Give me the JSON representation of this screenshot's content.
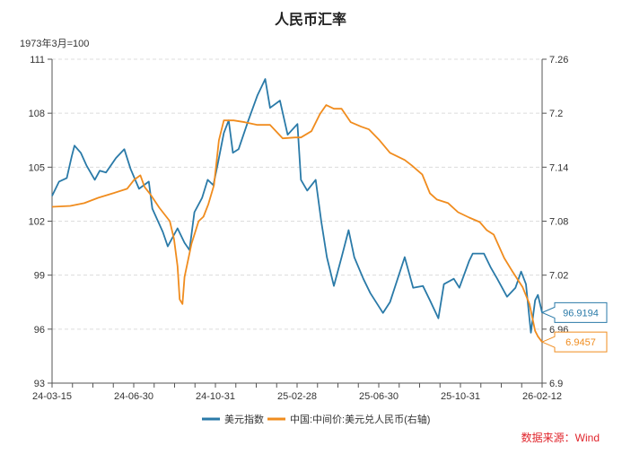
{
  "chart_data": {
    "type": "line",
    "title": "人民币汇率",
    "left_axis_note": "1973年3月=100",
    "source": "数据来源：Wind",
    "x_ticks": [
      "24-03-15",
      "24-06-30",
      "24-10-31",
      "25-02-28",
      "25-06-30",
      "25-10-31",
      "26-02-12"
    ],
    "x_range": [
      "2024-03-15",
      "2026-02-12"
    ],
    "y_left": {
      "ticks": [
        "111",
        "108",
        "105",
        "102",
        "99",
        "96",
        "93"
      ],
      "range": [
        93,
        111
      ]
    },
    "y_right": {
      "ticks": [
        "7.26",
        "7.2",
        "7.14",
        "7.08",
        "7.02",
        "6.96",
        "6.9"
      ],
      "range": [
        6.9,
        7.26
      ]
    },
    "grid": "horizontal dashed",
    "legend_position": "bottom-center",
    "series": [
      {
        "name": "美元指数",
        "axis": "left",
        "color": "#2a7aa8",
        "end_label": "96.9194",
        "points": [
          [
            "2024-03-15",
            103.4
          ],
          [
            "2024-03-25",
            104.2
          ],
          [
            "2024-04-05",
            104.4
          ],
          [
            "2024-04-12",
            105.6
          ],
          [
            "2024-04-16",
            106.2
          ],
          [
            "2024-04-25",
            105.8
          ],
          [
            "2024-05-03",
            105.1
          ],
          [
            "2024-05-15",
            104.3
          ],
          [
            "2024-05-22",
            104.8
          ],
          [
            "2024-05-31",
            104.7
          ],
          [
            "2024-06-14",
            105.5
          ],
          [
            "2024-06-26",
            106.0
          ],
          [
            "2024-07-05",
            104.9
          ],
          [
            "2024-07-17",
            103.8
          ],
          [
            "2024-07-31",
            104.2
          ],
          [
            "2024-08-05",
            102.7
          ],
          [
            "2024-08-20",
            101.4
          ],
          [
            "2024-08-27",
            100.6
          ],
          [
            "2024-09-10",
            101.6
          ],
          [
            "2024-09-20",
            100.8
          ],
          [
            "2024-09-27",
            100.4
          ],
          [
            "2024-10-04",
            102.5
          ],
          [
            "2024-10-15",
            103.3
          ],
          [
            "2024-10-23",
            104.3
          ],
          [
            "2024-10-31",
            104.0
          ],
          [
            "2024-11-06",
            105.1
          ],
          [
            "2024-11-15",
            106.9
          ],
          [
            "2024-11-22",
            107.6
          ],
          [
            "2024-11-28",
            105.8
          ],
          [
            "2024-12-06",
            106.0
          ],
          [
            "2024-12-20",
            107.6
          ],
          [
            "2025-01-02",
            109.0
          ],
          [
            "2025-01-13",
            109.9
          ],
          [
            "2025-01-20",
            108.3
          ],
          [
            "2025-02-03",
            108.7
          ],
          [
            "2025-02-14",
            106.8
          ],
          [
            "2025-02-28",
            107.4
          ],
          [
            "2025-03-05",
            104.3
          ],
          [
            "2025-03-14",
            103.7
          ],
          [
            "2025-03-26",
            104.3
          ],
          [
            "2025-04-03",
            102.0
          ],
          [
            "2025-04-11",
            100.0
          ],
          [
            "2025-04-21",
            98.4
          ],
          [
            "2025-05-02",
            100.0
          ],
          [
            "2025-05-12",
            101.5
          ],
          [
            "2025-05-20",
            100.0
          ],
          [
            "2025-06-02",
            98.8
          ],
          [
            "2025-06-12",
            98.0
          ],
          [
            "2025-06-30",
            96.9
          ],
          [
            "2025-07-10",
            97.5
          ],
          [
            "2025-07-31",
            100.0
          ],
          [
            "2025-08-12",
            98.3
          ],
          [
            "2025-08-26",
            98.4
          ],
          [
            "2025-09-05",
            97.6
          ],
          [
            "2025-09-17",
            96.6
          ],
          [
            "2025-09-25",
            98.5
          ],
          [
            "2025-10-09",
            98.8
          ],
          [
            "2025-10-17",
            98.3
          ],
          [
            "2025-10-31",
            99.8
          ],
          [
            "2025-11-05",
            100.2
          ],
          [
            "2025-11-21",
            100.2
          ],
          [
            "2025-12-01",
            99.4
          ],
          [
            "2025-12-10",
            98.8
          ],
          [
            "2025-12-24",
            97.8
          ],
          [
            "2026-01-05",
            98.3
          ],
          [
            "2026-01-13",
            99.2
          ],
          [
            "2026-01-20",
            98.5
          ],
          [
            "2026-01-27",
            95.8
          ],
          [
            "2026-02-02",
            97.6
          ],
          [
            "2026-02-06",
            97.9
          ],
          [
            "2026-02-12",
            96.9194
          ]
        ]
      },
      {
        "name": "中国:中间价:美元兑人民币(右轴)",
        "axis": "right",
        "color": "#f08c1e",
        "end_label": "6.9457",
        "points": [
          [
            "2024-03-15",
            7.096
          ],
          [
            "2024-04-10",
            7.097
          ],
          [
            "2024-04-30",
            7.1
          ],
          [
            "2024-05-20",
            7.106
          ],
          [
            "2024-06-10",
            7.111
          ],
          [
            "2024-06-30",
            7.116
          ],
          [
            "2024-07-10",
            7.126
          ],
          [
            "2024-07-19",
            7.131
          ],
          [
            "2024-07-25",
            7.118
          ],
          [
            "2024-08-02",
            7.11
          ],
          [
            "2024-08-15",
            7.095
          ],
          [
            "2024-08-30",
            7.08
          ],
          [
            "2024-09-05",
            7.06
          ],
          [
            "2024-09-10",
            7.03
          ],
          [
            "2024-09-13",
            6.993
          ],
          [
            "2024-09-17",
            6.988
          ],
          [
            "2024-09-20",
            7.018
          ],
          [
            "2024-09-30",
            7.055
          ],
          [
            "2024-10-10",
            7.08
          ],
          [
            "2024-10-17",
            7.085
          ],
          [
            "2024-10-24",
            7.099
          ],
          [
            "2024-11-01",
            7.12
          ],
          [
            "2024-11-08",
            7.17
          ],
          [
            "2024-11-15",
            7.192
          ],
          [
            "2024-11-29",
            7.192
          ],
          [
            "2024-12-15",
            7.19
          ],
          [
            "2025-01-02",
            7.187
          ],
          [
            "2025-01-20",
            7.187
          ],
          [
            "2025-02-07",
            7.172
          ],
          [
            "2025-02-25",
            7.173
          ],
          [
            "2025-03-05",
            7.173
          ],
          [
            "2025-03-20",
            7.18
          ],
          [
            "2025-04-01",
            7.199
          ],
          [
            "2025-04-10",
            7.209
          ],
          [
            "2025-04-21",
            7.205
          ],
          [
            "2025-05-02",
            7.205
          ],
          [
            "2025-05-15",
            7.19
          ],
          [
            "2025-05-30",
            7.185
          ],
          [
            "2025-06-10",
            7.182
          ],
          [
            "2025-06-25",
            7.17
          ],
          [
            "2025-07-10",
            7.156
          ],
          [
            "2025-07-31",
            7.148
          ],
          [
            "2025-08-10",
            7.142
          ],
          [
            "2025-08-25",
            7.132
          ],
          [
            "2025-09-05",
            7.111
          ],
          [
            "2025-09-15",
            7.104
          ],
          [
            "2025-10-01",
            7.1
          ],
          [
            "2025-10-15",
            7.09
          ],
          [
            "2025-10-31",
            7.084
          ],
          [
            "2025-11-15",
            7.079
          ],
          [
            "2025-11-25",
            7.07
          ],
          [
            "2025-12-05",
            7.065
          ],
          [
            "2025-12-20",
            7.039
          ],
          [
            "2025-12-31",
            7.025
          ],
          [
            "2026-01-15",
            7.007
          ],
          [
            "2026-01-25",
            6.988
          ],
          [
            "2026-02-02",
            6.958
          ],
          [
            "2026-02-06",
            6.952
          ],
          [
            "2026-02-12",
            6.9457
          ]
        ]
      }
    ]
  }
}
